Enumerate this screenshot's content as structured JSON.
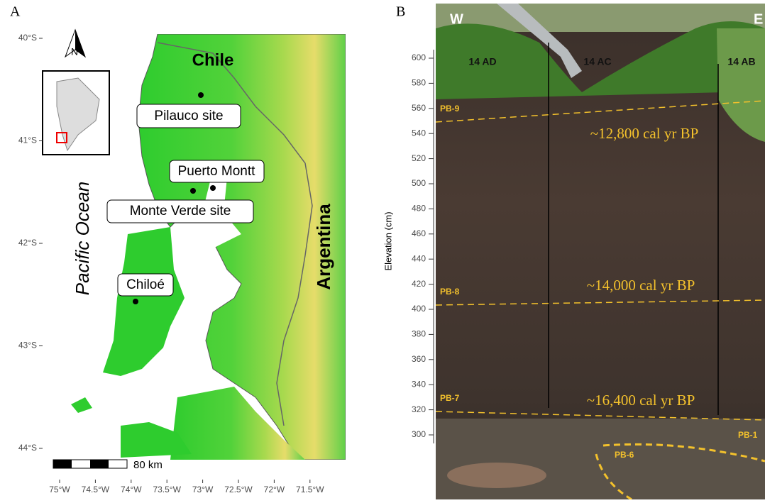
{
  "panel_a": {
    "label": "A",
    "lat_ticks": [
      "40°S",
      "41°S",
      "42°S",
      "43°S",
      "44°S"
    ],
    "lon_ticks": [
      "75°W",
      "74.5°W",
      "74°W",
      "73.5°W",
      "73°W",
      "72.5°W",
      "72°W",
      "71.5°W"
    ],
    "countries": [
      "Chile",
      "Argentina"
    ],
    "ocean": "Pacific Ocean",
    "north": "N",
    "places": [
      "Pilauco site",
      "Puerto Montt",
      "Monte Verde site",
      "Chiloé"
    ],
    "scale": "80 km"
  },
  "panel_b": {
    "label": "B",
    "axis_label": "Elevation (cm)",
    "elevation_ticks": [
      600,
      580,
      560,
      540,
      520,
      500,
      480,
      460,
      440,
      420,
      400,
      380,
      360,
      340,
      320,
      300
    ],
    "directions": [
      "W",
      "E"
    ],
    "profiles": [
      "14 AD",
      "14 AC",
      "14 AB"
    ],
    "layers": [
      "PB-9",
      "PB-8",
      "PB-7",
      "PB-1",
      "PB-6"
    ],
    "dates": [
      "~12,800 cal yr BP",
      "~14,000 cal yr BP",
      "~16,400 cal yr BP"
    ]
  }
}
